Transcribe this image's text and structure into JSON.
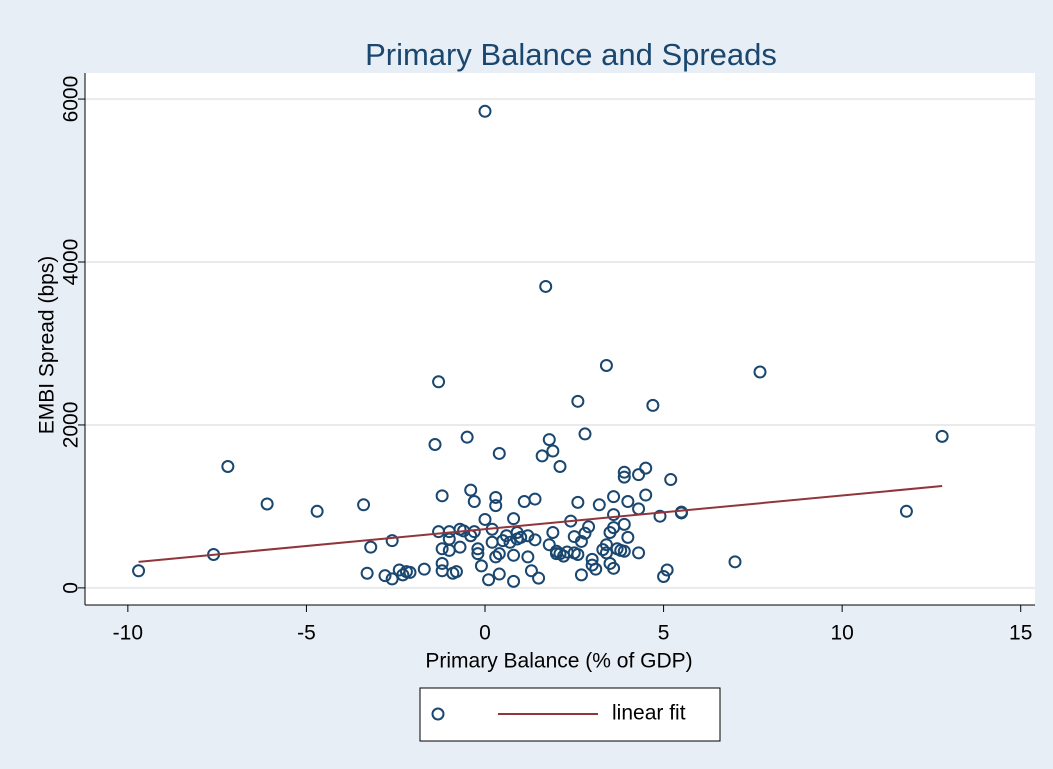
{
  "chart_data": {
    "type": "scatter",
    "title": "Primary Balance and Spreads",
    "x_label": "Primary Balance (% of GDP)",
    "y_label": "EMBI Spread (bps)",
    "xlim": [
      -11.2,
      15.4
    ],
    "xticks": [
      -10,
      -5,
      0,
      5,
      10,
      15
    ],
    "ylim": [
      -210,
      6320
    ],
    "yticks": [
      0,
      2000,
      4000,
      6000
    ],
    "ygrid": true,
    "legend": "bottom",
    "series": [
      {
        "type": "scatter",
        "marker": "hollow-circle",
        "color": "#1a476f",
        "x": [
          -9.7,
          -7.6,
          -7.2,
          -6.1,
          -4.7,
          -3.4,
          -3.3,
          -3.2,
          -2.6,
          -2.6,
          -2.8,
          -2.4,
          -2.3,
          -2.2,
          -2.1,
          -1.7,
          -1.4,
          -1.3,
          -1.3,
          -1.2,
          -1.2,
          -1.2,
          -1.2,
          -1.0,
          -1.0,
          -1.0,
          -0.9,
          -0.8,
          -0.7,
          -0.7,
          -0.6,
          -0.5,
          -0.4,
          -0.4,
          -0.3,
          -0.3,
          -0.2,
          -0.2,
          -0.1,
          0,
          0,
          0.1,
          0.2,
          0.2,
          0.3,
          0.3,
          0.3,
          0.4,
          0.4,
          0.4,
          0.5,
          0.6,
          0.7,
          0.8,
          0.8,
          0.8,
          0.9,
          0.9,
          1.0,
          1.1,
          1.2,
          1.3,
          1.2,
          1.4,
          1.4,
          1.5,
          1.6,
          1.7,
          1.8,
          1.8,
          1.9,
          1.9,
          2.0,
          2.0,
          2.1,
          2.1,
          2.2,
          2.3,
          2.4,
          2.5,
          2.5,
          2.6,
          2.6,
          2.6,
          2.7,
          2.7,
          2.8,
          2.8,
          2.9,
          3.0,
          3.0,
          3.1,
          3.2,
          3.3,
          3.4,
          3.4,
          3.4,
          3.5,
          3.5,
          3.6,
          3.6,
          3.6,
          3.6,
          3.7,
          3.8,
          3.9,
          3.9,
          3.9,
          3.9,
          4.0,
          4.0,
          4.3,
          4.3,
          4.3,
          4.5,
          4.5,
          4.7,
          4.9,
          5.0,
          5.1,
          5.2,
          5.5,
          5.5,
          7.0,
          7.7,
          11.8,
          12.8
        ],
        "values": [
          210,
          410,
          1490,
          1030,
          940,
          1020,
          180,
          500,
          580,
          110,
          150,
          220,
          160,
          200,
          190,
          230,
          1760,
          2530,
          690,
          1130,
          480,
          300,
          210,
          690,
          600,
          460,
          180,
          200,
          500,
          720,
          700,
          1850,
          1200,
          640,
          1060,
          690,
          480,
          420,
          270,
          5850,
          840,
          100,
          560,
          720,
          1110,
          1010,
          380,
          1650,
          170,
          420,
          580,
          640,
          560,
          850,
          400,
          80,
          680,
          600,
          620,
          1060,
          640,
          210,
          380,
          1090,
          590,
          120,
          1620,
          3700,
          1820,
          530,
          1680,
          680,
          450,
          420,
          1490,
          420,
          390,
          440,
          820,
          630,
          430,
          2290,
          1050,
          410,
          570,
          160,
          1890,
          670,
          750,
          350,
          280,
          230,
          1020,
          470,
          2730,
          530,
          430,
          300,
          680,
          740,
          1120,
          900,
          240,
          480,
          460,
          1420,
          1360,
          780,
          450,
          1060,
          620,
          1390,
          970,
          430,
          1470,
          1140,
          2240,
          880,
          140,
          220,
          1330,
          930,
          920,
          320,
          2650,
          940,
          1860
        ]
      },
      {
        "type": "line",
        "name": "linear fit",
        "color": "#90353b",
        "x": [
          -9.7,
          12.8
        ],
        "values": [
          320,
          1250
        ]
      }
    ]
  }
}
